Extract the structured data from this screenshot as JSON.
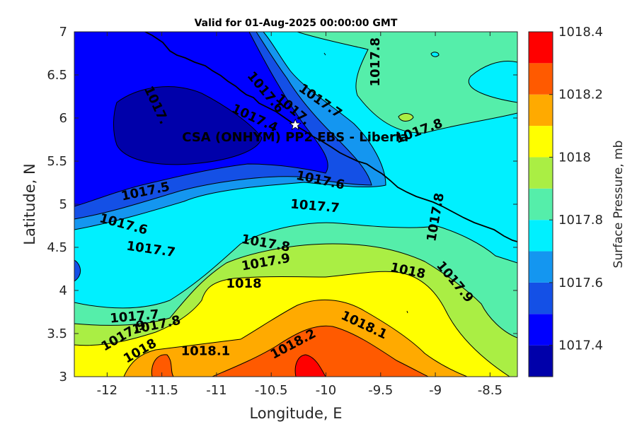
{
  "chart_data": {
    "type": "filled-contour",
    "title": "Valid for 01-Aug-2025 00:00:00 GMT",
    "xlabel": "Longitude, E",
    "ylabel": "Latitude, N",
    "xlim": [
      -12.3,
      -8.25
    ],
    "ylim": [
      3,
      7
    ],
    "xticks": [
      -12,
      -11.5,
      -11,
      -10.5,
      -10,
      -9.5,
      -9,
      -8.5
    ],
    "yticks": [
      3,
      3.5,
      4,
      4.5,
      5,
      5.5,
      6,
      6.5,
      7
    ],
    "colorbar": {
      "label": "Surface Pressure, mb",
      "range": [
        1017.3,
        1018.4
      ],
      "levels": [
        1017.3,
        1017.4,
        1017.5,
        1017.6,
        1017.7,
        1017.8,
        1017.9,
        1018.0,
        1018.1,
        1018.2,
        1018.3,
        1018.4
      ],
      "colors": [
        "#0000aa",
        "#0000ff",
        "#1450e6",
        "#1496f0",
        "#00f0ff",
        "#55eeaa",
        "#aaee44",
        "#ffff00",
        "#ffaa00",
        "#ff5a00",
        "#ff0000",
        "#aa0000"
      ],
      "tick_values": [
        1017.4,
        1017.6,
        1017.8,
        1018,
        1018.2,
        1018.4
      ],
      "tick_labels": [
        "1017.4",
        "1017.6",
        "1017.8",
        "1018",
        "1018.2",
        "1018.4"
      ]
    },
    "contour_labels": [
      {
        "text": "1017.8",
        "lon": -9.55,
        "lat": 6.65,
        "angle": -90
      },
      {
        "text": "1017.6",
        "lon": -10.55,
        "lat": 6.3,
        "angle": 50
      },
      {
        "text": "1017.7",
        "lon": -10.05,
        "lat": 6.2,
        "angle": 35
      },
      {
        "text": "1017.",
        "lon": -10.3,
        "lat": 6.1,
        "angle": 40
      },
      {
        "text": "1017.4",
        "lon": -10.65,
        "lat": 6.0,
        "angle": 25
      },
      {
        "text": "1017.",
        "lon": -11.55,
        "lat": 6.15,
        "angle": 65
      },
      {
        "text": "1017.8",
        "lon": -9.15,
        "lat": 5.85,
        "angle": -20
      },
      {
        "text": "1017.6",
        "lon": -10.05,
        "lat": 5.28,
        "angle": 12
      },
      {
        "text": "1017.5",
        "lon": -11.65,
        "lat": 5.15,
        "angle": -12
      },
      {
        "text": "1017.7",
        "lon": -10.1,
        "lat": 4.98,
        "angle": 5
      },
      {
        "text": "1017.8",
        "lon": -9.0,
        "lat": 4.85,
        "angle": -80
      },
      {
        "text": "1017.6",
        "lon": -11.85,
        "lat": 4.77,
        "angle": 15
      },
      {
        "text": "1017.7",
        "lon": -11.6,
        "lat": 4.48,
        "angle": 8
      },
      {
        "text": "1017.8",
        "lon": -10.55,
        "lat": 4.55,
        "angle": 10
      },
      {
        "text": "1017.9",
        "lon": -10.55,
        "lat": 4.33,
        "angle": -10
      },
      {
        "text": "1018",
        "lon": -9.25,
        "lat": 4.23,
        "angle": 12
      },
      {
        "text": "1017.9",
        "lon": -8.82,
        "lat": 4.1,
        "angle": 50
      },
      {
        "text": "1018",
        "lon": -10.75,
        "lat": 4.08,
        "angle": 0
      },
      {
        "text": "1017.7",
        "lon": -11.75,
        "lat": 3.7,
        "angle": -5
      },
      {
        "text": "1017.8",
        "lon": -11.55,
        "lat": 3.6,
        "angle": -12
      },
      {
        "text": "1017.9",
        "lon": -11.85,
        "lat": 3.48,
        "angle": -30
      },
      {
        "text": "1018.1",
        "lon": -9.65,
        "lat": 3.6,
        "angle": 25
      },
      {
        "text": "1018",
        "lon": -11.7,
        "lat": 3.3,
        "angle": -30
      },
      {
        "text": "1018.1",
        "lon": -11.1,
        "lat": 3.3,
        "angle": 0
      },
      {
        "text": "1018.2",
        "lon": -10.3,
        "lat": 3.38,
        "angle": -28
      }
    ],
    "site_marker": {
      "label": "CSA (ONHYM) PP2 EBS  - Liberia",
      "lon": -10.28,
      "lat": 5.92
    }
  }
}
